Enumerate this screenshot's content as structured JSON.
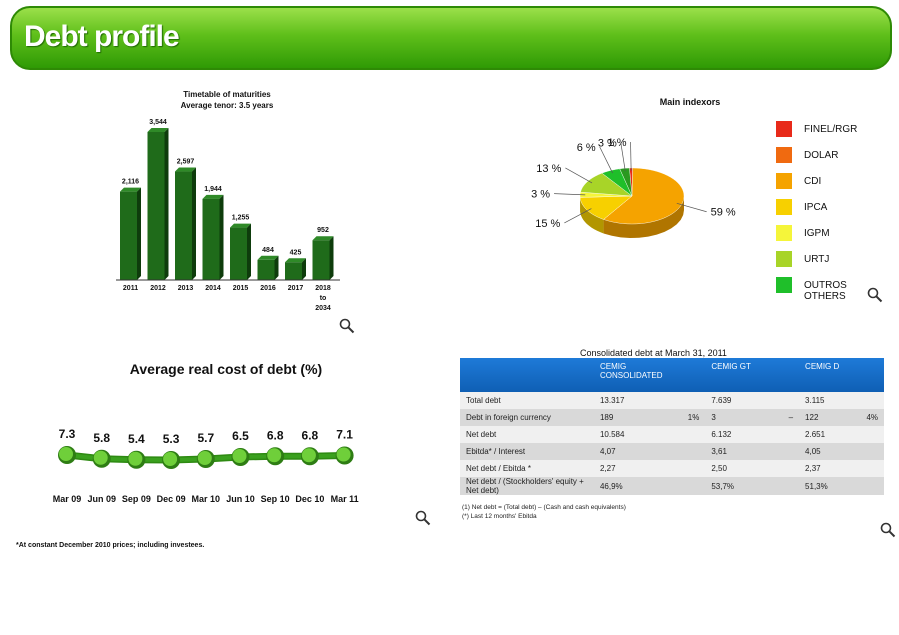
{
  "header": {
    "title": "Debt profile"
  },
  "chart_data": [
    {
      "type": "bar",
      "title": "Timetable of maturities",
      "subtitle": "Average tenor: 3.5 years",
      "categories": [
        "2011",
        "2012",
        "2013",
        "2014",
        "2015",
        "2016",
        "2017",
        "2018\nto\n2034"
      ],
      "category_lines": [
        [
          "2011"
        ],
        [
          "2012"
        ],
        [
          "2013"
        ],
        [
          "2014"
        ],
        [
          "2015"
        ],
        [
          "2016"
        ],
        [
          "2017"
        ],
        [
          "2018",
          "to",
          "2034"
        ]
      ],
      "values": [
        2116,
        3544,
        2597,
        1944,
        1255,
        484,
        425,
        952
      ],
      "value_labels": [
        "2,116",
        "3,544",
        "2,597",
        "1,944",
        "1,255",
        "484",
        "425",
        "952"
      ],
      "ylim": [
        0,
        3544
      ],
      "color": "#1f6b1a"
    },
    {
      "type": "pie",
      "title": "Main indexors",
      "slices": [
        {
          "name": "FINEL/RGR",
          "value": 1,
          "label": "1 %",
          "color": "#e82a1a"
        },
        {
          "name": "DOLAR",
          "value": 0,
          "label": "",
          "color": "#f06a10"
        },
        {
          "name": "CDI",
          "value": 59,
          "label": "59 %",
          "color": "#f5a300"
        },
        {
          "name": "IPCA",
          "value": 15,
          "label": "15 %",
          "color": "#f7d000"
        },
        {
          "name": "IGPM",
          "value": 3,
          "label": "3 %",
          "color": "#f5f53a"
        },
        {
          "name": "URTJ",
          "value": 13,
          "label": "13 %",
          "color": "#a8d428"
        },
        {
          "name": "OUTROS OTHERS",
          "value": 6,
          "label": "6 %",
          "color": "#1fbf2a"
        },
        {
          "name": "",
          "value": 3,
          "label": "3 %",
          "color": "#2a9a20"
        }
      ],
      "legend": [
        "FINEL/RGR",
        "DOLAR",
        "CDI",
        "IPCA",
        "IGPM",
        "URTJ",
        "OUTROS",
        "OTHERS"
      ],
      "legend_placement": "right"
    },
    {
      "type": "line",
      "title": "Average real cost of debt (%)",
      "categories": [
        "Mar 09",
        "Jun 09",
        "Sep 09",
        "Dec 09",
        "Mar 10",
        "Jun 10",
        "Sep 10",
        "Dec 10",
        "Mar 11"
      ],
      "values": [
        7.3,
        5.8,
        5.4,
        5.3,
        5.7,
        6.5,
        6.8,
        6.8,
        7.1
      ],
      "value_labels": [
        "7.3",
        "5.8",
        "5.4",
        "5.3",
        "5.7",
        "6.5",
        "6.8",
        "6.8",
        "7.1"
      ],
      "color": "#3aa01e"
    },
    {
      "type": "table",
      "title": "Consolidated debt at March 31, 2011",
      "columns": [
        "",
        "CEMIG CONSOLIDATED",
        "",
        "CEMIG GT",
        "",
        "CEMIG D",
        ""
      ],
      "rows": [
        [
          "Total debt",
          "13.317",
          "",
          "7.639",
          "",
          "3.115",
          ""
        ],
        [
          "Debt in foreign currency",
          "189",
          "1%",
          "3",
          "–",
          "122",
          "4%"
        ],
        [
          "Net debt",
          "10.584",
          "",
          "6.132",
          "",
          "2.651",
          ""
        ],
        [
          "Ebitda* / Interest",
          "4,07",
          "",
          "3,61",
          "",
          "4,05",
          ""
        ],
        [
          "Net debt / Ebitda *",
          "2,27",
          "",
          "2,50",
          "",
          "2,37",
          ""
        ],
        [
          "Net debt / (Stockholders' equity + Net debt)",
          "46,9%",
          "",
          "53,7%",
          "",
          "51,3%",
          ""
        ]
      ]
    }
  ],
  "table": {
    "header_consolidated_1": "CEMIG",
    "header_consolidated_2": "CONSOLIDATED",
    "header_gt": "CEMIG GT",
    "header_d": "CEMIG D",
    "note_1": "(1) Net debt = (Total debt) – (Cash and cash equivalents)",
    "note_2": "(*) Last 12 months' Ebitda"
  },
  "footnote": "*At constant December 2010 prices; including investees.",
  "icons": {
    "zoom": "magnifier-icon"
  },
  "colors": {
    "banner": "#4caf1a",
    "bar": "#1f6b1a",
    "table_header": "#1a6fc8",
    "line": "#3aa01e"
  }
}
